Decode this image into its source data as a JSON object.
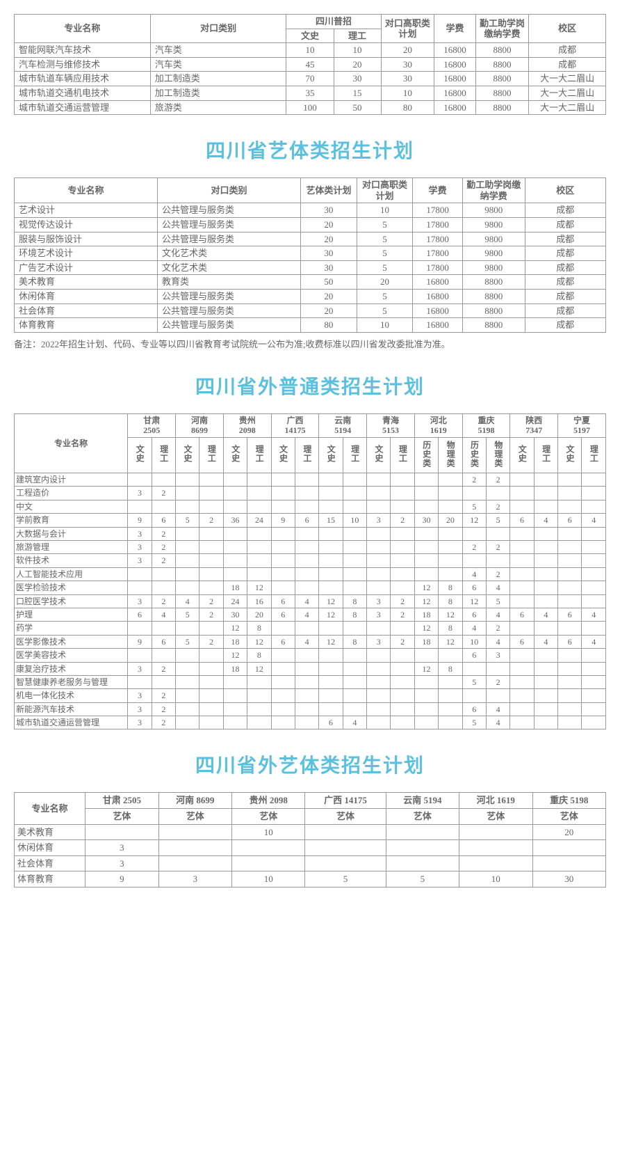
{
  "colors": {
    "heading": "#5bc0de",
    "text": "#666666",
    "border": "#999999",
    "background": "#ffffff"
  },
  "table1": {
    "headers": {
      "major": "专业名称",
      "category": "对口类别",
      "sichuan": "四川普招",
      "wenshi": "文史",
      "ligong": "理工",
      "gaozhi": "对口高职类计划",
      "tuition": "学费",
      "workstudy": "勤工助学岗缴纳学费",
      "campus": "校区"
    },
    "rows": [
      {
        "major": "智能网联汽车技术",
        "category": "汽车类",
        "wenshi": "10",
        "ligong": "10",
        "gaozhi": "20",
        "tuition": "16800",
        "workstudy": "8800",
        "campus": "成都"
      },
      {
        "major": "汽车检测与维修技术",
        "category": "汽车类",
        "wenshi": "45",
        "ligong": "20",
        "gaozhi": "30",
        "tuition": "16800",
        "workstudy": "8800",
        "campus": "成都"
      },
      {
        "major": "城市轨道车辆应用技术",
        "category": "加工制造类",
        "wenshi": "70",
        "ligong": "30",
        "gaozhi": "30",
        "tuition": "16800",
        "workstudy": "8800",
        "campus": "大一大二眉山"
      },
      {
        "major": "城市轨道交通机电技术",
        "category": "加工制造类",
        "wenshi": "35",
        "ligong": "15",
        "gaozhi": "10",
        "tuition": "16800",
        "workstudy": "8800",
        "campus": "大一大二眉山"
      },
      {
        "major": "城市轨道交通运营管理",
        "category": "旅游类",
        "wenshi": "100",
        "ligong": "50",
        "gaozhi": "80",
        "tuition": "16800",
        "workstudy": "8800",
        "campus": "大一大二眉山"
      }
    ]
  },
  "section2": {
    "title": "四川省艺体类招生计划",
    "headers": {
      "major": "专业名称",
      "category": "对口类别",
      "art_plan": "艺体类计划",
      "gaozhi": "对口高职类计划",
      "tuition": "学费",
      "workstudy": "勤工助学岗缴纳学费",
      "campus": "校区"
    },
    "rows": [
      {
        "major": "艺术设计",
        "category": "公共管理与服务类",
        "art_plan": "30",
        "gaozhi": "10",
        "tuition": "17800",
        "workstudy": "9800",
        "campus": "成都"
      },
      {
        "major": "视觉传达设计",
        "category": "公共管理与服务类",
        "art_plan": "20",
        "gaozhi": "5",
        "tuition": "17800",
        "workstudy": "9800",
        "campus": "成都"
      },
      {
        "major": "服装与服饰设计",
        "category": "公共管理与服务类",
        "art_plan": "20",
        "gaozhi": "5",
        "tuition": "17800",
        "workstudy": "9800",
        "campus": "成都"
      },
      {
        "major": "环境艺术设计",
        "category": "文化艺术类",
        "art_plan": "30",
        "gaozhi": "5",
        "tuition": "17800",
        "workstudy": "9800",
        "campus": "成都"
      },
      {
        "major": "广告艺术设计",
        "category": "文化艺术类",
        "art_plan": "30",
        "gaozhi": "5",
        "tuition": "17800",
        "workstudy": "9800",
        "campus": "成都"
      },
      {
        "major": "美术教育",
        "category": "教育类",
        "art_plan": "50",
        "gaozhi": "20",
        "tuition": "16800",
        "workstudy": "8800",
        "campus": "成都"
      },
      {
        "major": "休闲体育",
        "category": "公共管理与服务类",
        "art_plan": "20",
        "gaozhi": "5",
        "tuition": "16800",
        "workstudy": "8800",
        "campus": "成都"
      },
      {
        "major": "社会体育",
        "category": "公共管理与服务类",
        "art_plan": "20",
        "gaozhi": "5",
        "tuition": "16800",
        "workstudy": "8800",
        "campus": "成都"
      },
      {
        "major": "体育教育",
        "category": "公共管理与服务类",
        "art_plan": "80",
        "gaozhi": "10",
        "tuition": "16800",
        "workstudy": "8800",
        "campus": "成都"
      }
    ],
    "note": "备注：2022年招生计划、代码、专业等以四川省教育考试院统一公布为准;收费标准以四川省发改委批准为准。"
  },
  "section3": {
    "title": "四川省外普通类招生计划",
    "headers": {
      "major": "专业名称",
      "wenshi": "文史",
      "ligong": "理工",
      "lishi": "历史类",
      "wuli": "物理类"
    },
    "provinces": [
      {
        "name": "甘肃",
        "code": "2505",
        "cols": [
          "文史",
          "理工"
        ]
      },
      {
        "name": "河南",
        "code": "8699",
        "cols": [
          "文史",
          "理工"
        ]
      },
      {
        "name": "贵州",
        "code": "2098",
        "cols": [
          "文史",
          "理工"
        ]
      },
      {
        "name": "广西",
        "code": "14175",
        "cols": [
          "文史",
          "理工"
        ]
      },
      {
        "name": "云南",
        "code": "5194",
        "cols": [
          "文史",
          "理工"
        ]
      },
      {
        "name": "青海",
        "code": "5153",
        "cols": [
          "文史",
          "理工"
        ]
      },
      {
        "name": "河北",
        "code": "1619",
        "cols": [
          "历史类",
          "物理类"
        ]
      },
      {
        "name": "重庆",
        "code": "5198",
        "cols": [
          "历史类",
          "物理类"
        ]
      },
      {
        "name": "陕西",
        "code": "7347",
        "cols": [
          "文史",
          "理工"
        ]
      },
      {
        "name": "宁夏",
        "code": "5197",
        "cols": [
          "文史",
          "理工"
        ]
      }
    ],
    "rows": [
      {
        "major": "建筑室内设计",
        "vals": [
          "",
          "",
          "",
          "",
          "",
          "",
          "",
          "",
          "",
          "",
          "",
          "",
          "",
          "",
          "2",
          "2",
          "",
          "",
          "",
          ""
        ]
      },
      {
        "major": "工程造价",
        "vals": [
          "3",
          "2",
          "",
          "",
          "",
          "",
          "",
          "",
          "",
          "",
          "",
          "",
          "",
          "",
          "",
          "",
          "",
          "",
          "",
          ""
        ]
      },
      {
        "major": "中文",
        "vals": [
          "",
          "",
          "",
          "",
          "",
          "",
          "",
          "",
          "",
          "",
          "",
          "",
          "",
          "",
          "5",
          "2",
          "",
          "",
          "",
          ""
        ]
      },
      {
        "major": "学前教育",
        "vals": [
          "9",
          "6",
          "5",
          "2",
          "36",
          "24",
          "9",
          "6",
          "15",
          "10",
          "3",
          "2",
          "30",
          "20",
          "12",
          "5",
          "6",
          "4",
          "6",
          "4"
        ]
      },
      {
        "major": "大数据与会计",
        "vals": [
          "3",
          "2",
          "",
          "",
          "",
          "",
          "",
          "",
          "",
          "",
          "",
          "",
          "",
          "",
          "",
          "",
          "",
          "",
          "",
          ""
        ]
      },
      {
        "major": "旅游管理",
        "vals": [
          "3",
          "2",
          "",
          "",
          "",
          "",
          "",
          "",
          "",
          "",
          "",
          "",
          "",
          "",
          "2",
          "2",
          "",
          "",
          "",
          ""
        ]
      },
      {
        "major": "软件技术",
        "vals": [
          "3",
          "2",
          "",
          "",
          "",
          "",
          "",
          "",
          "",
          "",
          "",
          "",
          "",
          "",
          "",
          "",
          "",
          "",
          "",
          ""
        ]
      },
      {
        "major": "人工智能技术应用",
        "vals": [
          "",
          "",
          "",
          "",
          "",
          "",
          "",
          "",
          "",
          "",
          "",
          "",
          "",
          "",
          "4",
          "2",
          "",
          "",
          "",
          ""
        ]
      },
      {
        "major": "医学检验技术",
        "vals": [
          "",
          "",
          "",
          "",
          "18",
          "12",
          "",
          "",
          "",
          "",
          "",
          "",
          "12",
          "8",
          "6",
          "4",
          "",
          "",
          "",
          ""
        ]
      },
      {
        "major": "口腔医学技术",
        "vals": [
          "3",
          "2",
          "4",
          "2",
          "24",
          "16",
          "6",
          "4",
          "12",
          "8",
          "3",
          "2",
          "12",
          "8",
          "12",
          "5",
          "",
          "",
          "",
          ""
        ]
      },
      {
        "major": "护理",
        "vals": [
          "6",
          "4",
          "5",
          "2",
          "30",
          "20",
          "6",
          "4",
          "12",
          "8",
          "3",
          "2",
          "18",
          "12",
          "6",
          "4",
          "6",
          "4",
          "6",
          "4"
        ]
      },
      {
        "major": "药学",
        "vals": [
          "",
          "",
          "",
          "",
          "12",
          "8",
          "",
          "",
          "",
          "",
          "",
          "",
          "12",
          "8",
          "4",
          "2",
          "",
          "",
          "",
          ""
        ]
      },
      {
        "major": "医学影像技术",
        "vals": [
          "9",
          "6",
          "5",
          "2",
          "18",
          "12",
          "6",
          "4",
          "12",
          "8",
          "3",
          "2",
          "18",
          "12",
          "10",
          "4",
          "6",
          "4",
          "6",
          "4"
        ]
      },
      {
        "major": "医学美容技术",
        "vals": [
          "",
          "",
          "",
          "",
          "12",
          "8",
          "",
          "",
          "",
          "",
          "",
          "",
          "",
          "",
          "6",
          "3",
          "",
          "",
          "",
          ""
        ]
      },
      {
        "major": "康复治疗技术",
        "vals": [
          "3",
          "2",
          "",
          "",
          "18",
          "12",
          "",
          "",
          "",
          "",
          "",
          "",
          "12",
          "8",
          "",
          "",
          "",
          "",
          "",
          ""
        ]
      },
      {
        "major": "智慧健康养老服务与管理",
        "vals": [
          "",
          "",
          "",
          "",
          "",
          "",
          "",
          "",
          "",
          "",
          "",
          "",
          "",
          "",
          "5",
          "2",
          "",
          "",
          "",
          ""
        ]
      },
      {
        "major": "机电一体化技术",
        "vals": [
          "3",
          "2",
          "",
          "",
          "",
          "",
          "",
          "",
          "",
          "",
          "",
          "",
          "",
          "",
          "",
          "",
          "",
          "",
          "",
          ""
        ]
      },
      {
        "major": "新能源汽车技术",
        "vals": [
          "3",
          "2",
          "",
          "",
          "",
          "",
          "",
          "",
          "",
          "",
          "",
          "",
          "",
          "",
          "6",
          "4",
          "",
          "",
          "",
          ""
        ]
      },
      {
        "major": "城市轨道交通运营管理",
        "vals": [
          "3",
          "2",
          "",
          "",
          "",
          "",
          "",
          "",
          "6",
          "4",
          "",
          "",
          "",
          "",
          "5",
          "4",
          "",
          "",
          "",
          ""
        ]
      }
    ]
  },
  "section4": {
    "title": "四川省外艺体类招生计划",
    "headers": {
      "major": "专业名称",
      "yiti": "艺体"
    },
    "provinces": [
      {
        "name": "甘肃 2505"
      },
      {
        "name": "河南 8699"
      },
      {
        "name": "贵州 2098"
      },
      {
        "name": "广西 14175"
      },
      {
        "name": "云南 5194"
      },
      {
        "name": "河北 1619"
      },
      {
        "name": "重庆 5198"
      }
    ],
    "rows": [
      {
        "major": "美术教育",
        "vals": [
          "",
          "",
          "10",
          "",
          "",
          "",
          "20"
        ]
      },
      {
        "major": "休闲体育",
        "vals": [
          "3",
          "",
          "",
          "",
          "",
          "",
          ""
        ]
      },
      {
        "major": "社会体育",
        "vals": [
          "3",
          "",
          "",
          "",
          "",
          "",
          ""
        ]
      },
      {
        "major": "体育教育",
        "vals": [
          "9",
          "3",
          "10",
          "5",
          "5",
          "10",
          "30"
        ]
      }
    ]
  }
}
